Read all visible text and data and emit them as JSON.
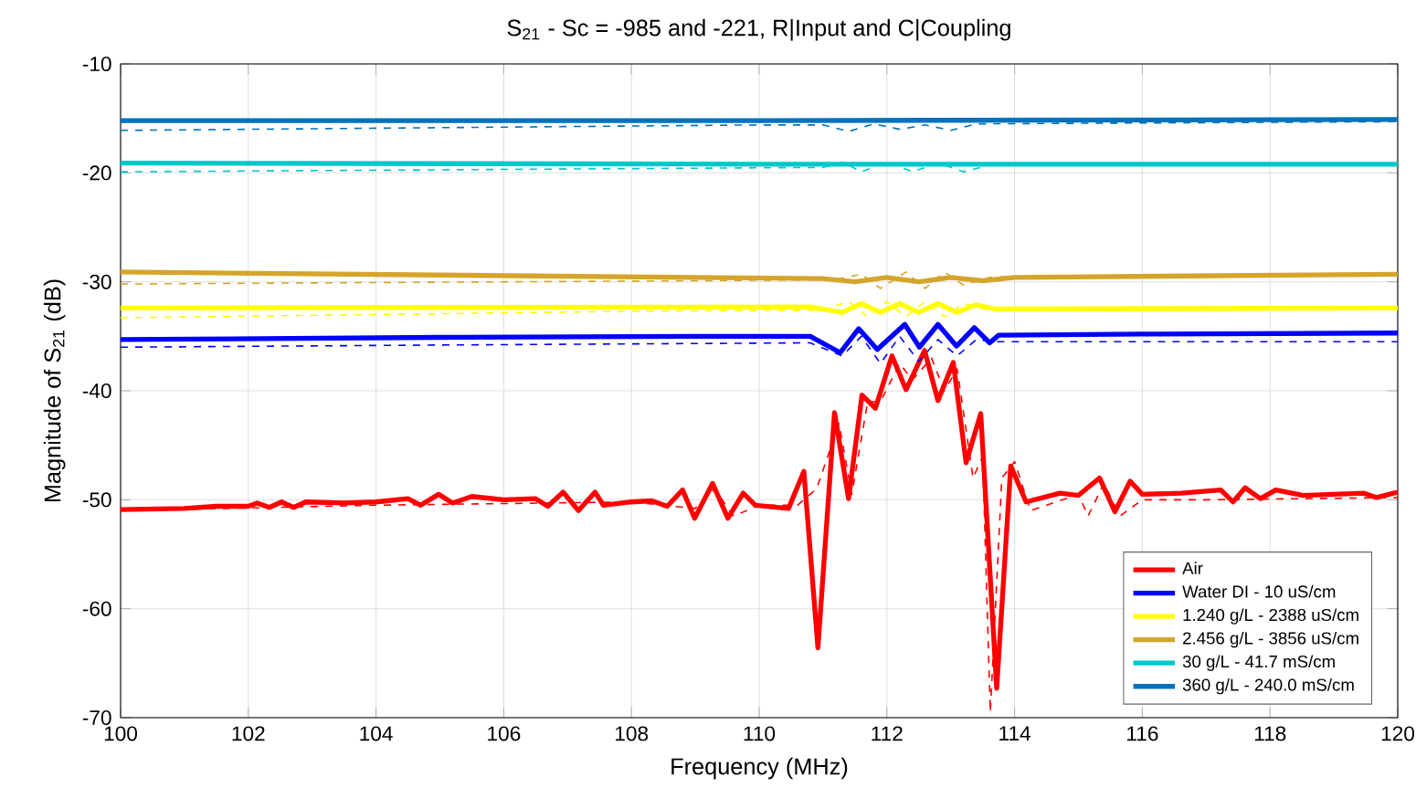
{
  "chart_data": {
    "type": "line",
    "title": "S$_{21}$ - Sc = -985 and -221, R|Input and C|Coupling",
    "xlabel": "Frequency (MHz)",
    "ylabel": "Magnitude of S$_{21}$  (dB)",
    "xlim": [
      100,
      120
    ],
    "ylim": [
      -70,
      -10
    ],
    "xticks": [
      100,
      102,
      104,
      106,
      108,
      110,
      112,
      114,
      116,
      118,
      120
    ],
    "yticks": [
      -70,
      -60,
      -50,
      -40,
      -30,
      -20,
      -10
    ],
    "grid": true,
    "legend": "bottom right",
    "marker": "none",
    "series": [
      {
        "name": "Air",
        "color": "#ff0000",
        "line_style": "solid",
        "x": [
          100,
          101,
          101.5,
          102,
          102.14,
          102.33,
          102.52,
          102.71,
          102.9,
          103.5,
          104,
          104.5,
          104.7,
          104.98,
          105.2,
          105.5,
          106,
          106.5,
          106.69,
          106.93,
          107.17,
          107.43,
          107.56,
          108,
          108.32,
          108.56,
          108.8,
          108.99,
          109.27,
          109.51,
          109.75,
          109.94,
          110.46,
          110.7,
          110.92,
          111.18,
          111.4,
          111.61,
          111.82,
          112.08,
          112.3,
          112.59,
          112.8,
          113.04,
          113.24,
          113.47,
          113.72,
          113.94,
          114.18,
          114.71,
          115.0,
          115.33,
          115.57,
          115.81,
          116,
          116.61,
          117.23,
          117.42,
          117.61,
          117.85,
          118.09,
          118.52,
          119.47,
          119.67,
          120
        ],
        "values": [
          -50.9,
          -50.8,
          -50.6,
          -50.6,
          -50.3,
          -50.7,
          -50.2,
          -50.7,
          -50.2,
          -50.3,
          -50.2,
          -49.9,
          -50.5,
          -49.5,
          -50.3,
          -49.7,
          -50.0,
          -49.9,
          -50.6,
          -49.3,
          -51.0,
          -49.3,
          -50.5,
          -50.2,
          -50.1,
          -50.6,
          -49.1,
          -51.7,
          -48.5,
          -51.7,
          -49.4,
          -50.5,
          -50.8,
          -47.4,
          -63.6,
          -42.0,
          -49.9,
          -40.4,
          -41.6,
          -36.8,
          -39.9,
          -36.3,
          -40.9,
          -37.4,
          -46.6,
          -42.1,
          -67.3,
          -46.9,
          -50.2,
          -49.4,
          -49.6,
          -48.0,
          -51.1,
          -48.3,
          -49.5,
          -49.4,
          -49.1,
          -50.2,
          -48.9,
          -49.9,
          -49.1,
          -49.6,
          -49.4,
          -49.8,
          -49.3
        ]
      },
      {
        "name": "Water DI - 10 uS/cm",
        "color": "#0000ff",
        "line_style": "solid",
        "x": [
          100,
          105,
          109,
          110.8,
          111.27,
          111.56,
          111.85,
          112.28,
          112.51,
          112.8,
          113.09,
          113.37,
          113.61,
          113.75,
          116,
          120
        ],
        "values": [
          -35.3,
          -35.1,
          -35.0,
          -35.0,
          -36.5,
          -34.3,
          -36.2,
          -33.9,
          -36.0,
          -33.9,
          -35.9,
          -34.2,
          -35.6,
          -34.9,
          -34.8,
          -34.7
        ]
      },
      {
        "name": "1.240 g/L - 2388 uS/cm",
        "color": "#ffff00",
        "line_style": "solid",
        "x": [
          100,
          110.8,
          111.3,
          111.6,
          111.9,
          112.2,
          112.5,
          112.8,
          113.1,
          113.4,
          113.7,
          120
        ],
        "values": [
          -32.4,
          -32.3,
          -32.8,
          -32.0,
          -32.8,
          -32.0,
          -32.8,
          -32.0,
          -32.8,
          -32.1,
          -32.5,
          -32.4
        ]
      },
      {
        "name": "2.456 g/L - 3856 uS/cm",
        "color": "#d4a52a",
        "line_style": "solid",
        "x": [
          100,
          109,
          111,
          111.5,
          112,
          112.5,
          113,
          113.5,
          114,
          120
        ],
        "values": [
          -29.1,
          -29.6,
          -29.7,
          -30.0,
          -29.6,
          -30.0,
          -29.6,
          -29.9,
          -29.6,
          -29.3
        ]
      },
      {
        "name": "30 g/L - 41.7 mS/cm",
        "color": "#00c8c8",
        "line_style": "solid",
        "x": [
          100,
          110,
          120
        ],
        "values": [
          -19.1,
          -19.2,
          -19.2
        ]
      },
      {
        "name": "360 g/L - 240.0 mS/cm",
        "color": "#0072bd",
        "line_style": "solid",
        "x": [
          100,
          110,
          120
        ],
        "values": [
          -15.2,
          -15.2,
          -15.1
        ]
      },
      {
        "color": "#ff0000",
        "line_style": "dashed",
        "x": [
          100,
          104,
          108,
          109,
          109.3,
          109.6,
          110,
          110.6,
          110.9,
          111.25,
          111.45,
          111.7,
          111.9,
          112.2,
          112.4,
          112.7,
          112.9,
          113.1,
          113.35,
          113.5,
          113.62,
          113.8,
          114,
          114.25,
          115,
          115.15,
          115.4,
          115.65,
          116,
          117,
          120
        ],
        "values": [
          -51.0,
          -50.5,
          -50.2,
          -50.8,
          -49.0,
          -51.5,
          -50.5,
          -50.5,
          -49.0,
          -43.0,
          -49.5,
          -41.0,
          -41.0,
          -37.5,
          -39.0,
          -37.0,
          -40.0,
          -38.0,
          -48.0,
          -46.0,
          -69.5,
          -48.0,
          -46.5,
          -51.0,
          -49.5,
          -51.5,
          -48.5,
          -51.5,
          -50.0,
          -50.0,
          -49.8
        ]
      },
      {
        "color": "#0000ff",
        "line_style": "dashed",
        "x": [
          100,
          105,
          110.8,
          111.3,
          111.6,
          111.9,
          112.2,
          112.5,
          112.8,
          113.1,
          113.4,
          113.7,
          116,
          120
        ],
        "values": [
          -36.0,
          -35.8,
          -35.6,
          -36.8,
          -35.0,
          -37.5,
          -35.0,
          -37.3,
          -35.3,
          -36.8,
          -35.3,
          -35.5,
          -35.5,
          -35.5
        ]
      },
      {
        "color": "#ffff00",
        "line_style": "dashed",
        "x": [
          100,
          108,
          111,
          111.4,
          111.7,
          112.0,
          112.3,
          112.6,
          112.9,
          113.2,
          113.6,
          120
        ],
        "values": [
          -33.3,
          -32.7,
          -32.6,
          -31.8,
          -33.2,
          -31.8,
          -33.2,
          -31.8,
          -33.2,
          -32.0,
          -32.6,
          -32.5
        ]
      },
      {
        "color": "#d4a52a",
        "line_style": "dashed",
        "x": [
          100,
          109,
          111.2,
          111.6,
          111.9,
          112.3,
          112.6,
          112.9,
          113.2,
          113.6,
          114,
          120
        ],
        "values": [
          -30.2,
          -29.9,
          -29.8,
          -29.3,
          -30.6,
          -29.1,
          -30.6,
          -29.1,
          -30.3,
          -29.6,
          -29.5,
          -29.4
        ]
      },
      {
        "color": "#00c8c8",
        "line_style": "dashed",
        "x": [
          100,
          111,
          111.3,
          111.6,
          112,
          112.4,
          112.8,
          113.2,
          113.6,
          120
        ],
        "values": [
          -19.9,
          -19.5,
          -19.0,
          -19.9,
          -19.0,
          -19.9,
          -19.1,
          -19.9,
          -19.3,
          -19.3
        ]
      },
      {
        "color": "#0072bd",
        "line_style": "dashed",
        "x": [
          100,
          110,
          111,
          111.4,
          111.8,
          112.2,
          112.6,
          113.0,
          113.4,
          120
        ],
        "values": [
          -16.1,
          -15.6,
          -15.6,
          -16.2,
          -15.5,
          -16.0,
          -15.6,
          -16.1,
          -15.5,
          -15.3
        ]
      }
    ]
  }
}
